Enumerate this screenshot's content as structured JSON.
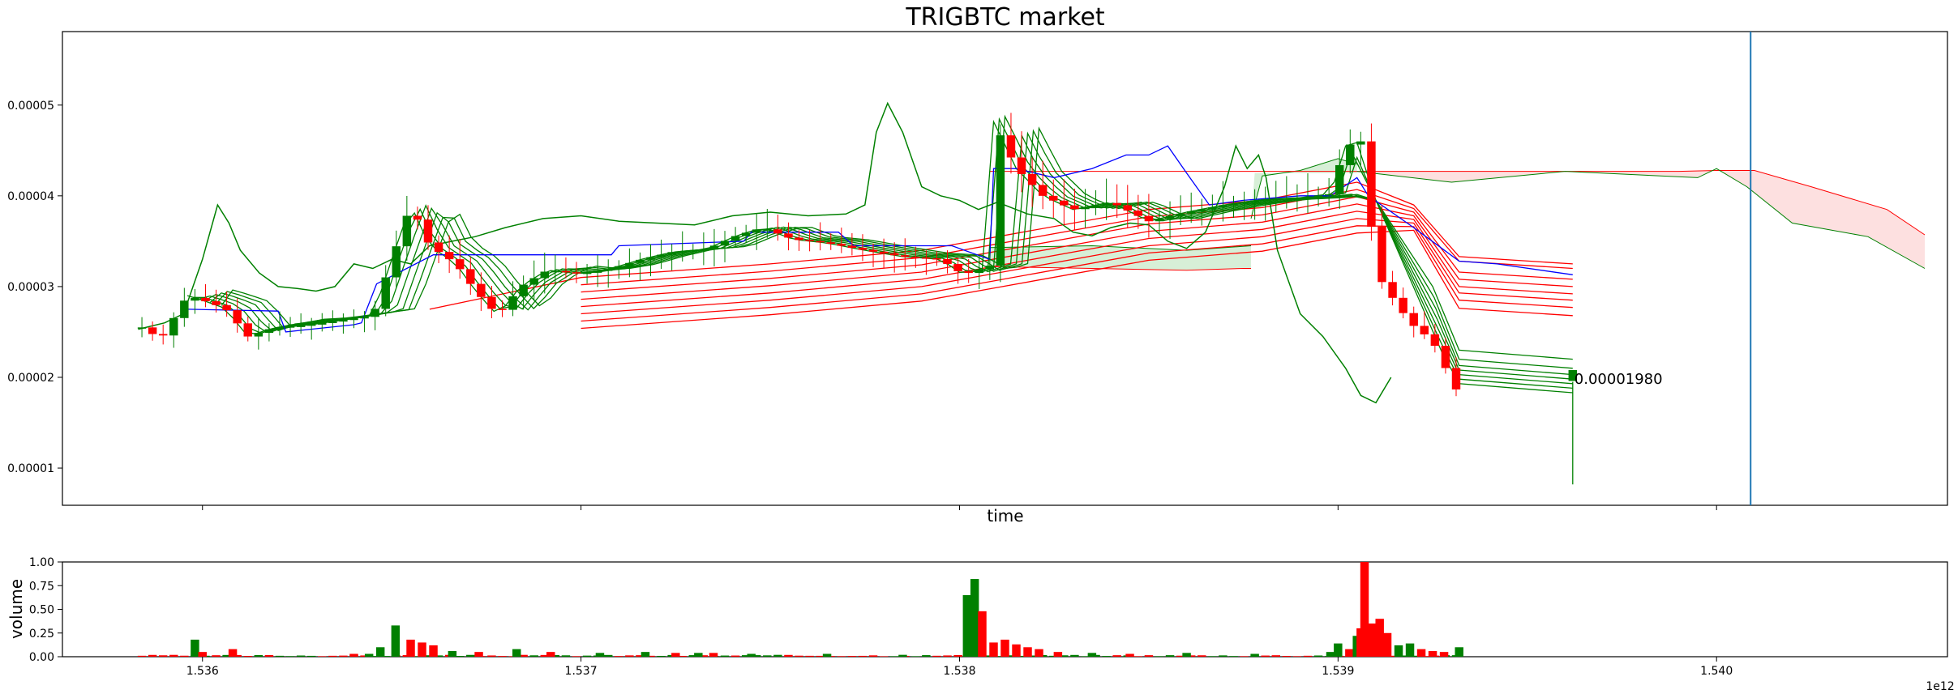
{
  "colors": {
    "up": "#008000",
    "down": "#ff0000",
    "kijun": "#0000ff",
    "cursor_line": "#1f77b4",
    "cloud_bull": "#d7efd7",
    "cloud_bear": "#fde0e0"
  },
  "chart_data": [
    {
      "type": "candlestick",
      "title": "TRIGBTC market",
      "xlabel": "time",
      "ylabel": "",
      "y_tick_labels": [
        "0.00001",
        "0.00002",
        "0.00003",
        "0.00004",
        "0.00005"
      ],
      "y_ticks": [
        1e-05,
        2e-05,
        3e-05,
        4e-05,
        5e-05
      ],
      "ylim": [
        5.9e-06,
        5.81e-05
      ],
      "xlim": [
        1.53563,
        1.54061
      ],
      "grid": false,
      "last_price_label": "0.00001980",
      "last_price": 1.98e-05,
      "close_path": [
        [
          1.53584,
          2.55e-05
        ],
        [
          1.53589,
          2.42e-05
        ],
        [
          1.53596,
          2.9e-05
        ],
        [
          1.536,
          2.85e-05
        ],
        [
          1.53606,
          2.76e-05
        ],
        [
          1.53612,
          2.45e-05
        ],
        [
          1.53619,
          2.55e-05
        ],
        [
          1.53627,
          2.57e-05
        ],
        [
          1.53637,
          2.63e-05
        ],
        [
          1.53645,
          2.68e-05
        ],
        [
          1.5365,
          3.3e-05
        ],
        [
          1.53655,
          3.9e-05
        ],
        [
          1.5366,
          3.45e-05
        ],
        [
          1.53667,
          3.25e-05
        ],
        [
          1.53672,
          2.96e-05
        ],
        [
          1.53678,
          2.68e-05
        ],
        [
          1.53684,
          3e-05
        ],
        [
          1.53691,
          3.18e-05
        ],
        [
          1.537,
          3.14e-05
        ],
        [
          1.53708,
          3.2e-05
        ],
        [
          1.53716,
          3.3e-05
        ],
        [
          1.53724,
          3.38e-05
        ],
        [
          1.53733,
          3.41e-05
        ],
        [
          1.53741,
          3.56e-05
        ],
        [
          1.53748,
          3.65e-05
        ],
        [
          1.53756,
          3.52e-05
        ],
        [
          1.53765,
          3.48e-05
        ],
        [
          1.53775,
          3.4e-05
        ],
        [
          1.53785,
          3.33e-05
        ],
        [
          1.53795,
          3.3e-05
        ],
        [
          1.53801,
          3.13e-05
        ],
        [
          1.53808,
          3.23e-05
        ],
        [
          1.53806,
          3.48e-05
        ],
        [
          1.53808,
          4.9e-05
        ],
        [
          1.53811,
          4.65e-05
        ],
        [
          1.53815,
          4.3e-05
        ],
        [
          1.53822,
          4e-05
        ],
        [
          1.5383,
          3.85e-05
        ],
        [
          1.5384,
          3.93e-05
        ],
        [
          1.5385,
          3.72e-05
        ],
        [
          1.5386,
          3.82e-05
        ],
        [
          1.5387,
          3.9e-05
        ],
        [
          1.5388,
          3.96e-05
        ],
        [
          1.5389,
          3.98e-05
        ],
        [
          1.53898,
          4.02e-05
        ],
        [
          1.53902,
          4.55e-05
        ],
        [
          1.53906,
          4.6e-05
        ],
        [
          1.53908,
          4e-05
        ],
        [
          1.5391,
          3.15e-05
        ],
        [
          1.53914,
          2.9e-05
        ],
        [
          1.53919,
          2.6e-05
        ],
        [
          1.53925,
          2.4e-05
        ],
        [
          1.53929,
          2.05e-05
        ],
        [
          1.53932,
          1.8e-05
        ]
      ],
      "kijun_path": [
        [
          1.53596,
          2.75e-05
        ],
        [
          1.5362,
          2.73e-05
        ],
        [
          1.53622,
          2.5e-05
        ],
        [
          1.5364,
          2.58e-05
        ],
        [
          1.53642,
          2.6e-05
        ],
        [
          1.53646,
          3.03e-05
        ],
        [
          1.53661,
          3.35e-05
        ],
        [
          1.5368,
          3.35e-05
        ],
        [
          1.53708,
          3.35e-05
        ],
        [
          1.5371,
          3.45e-05
        ],
        [
          1.53743,
          3.5e-05
        ],
        [
          1.53745,
          3.6e-05
        ],
        [
          1.53768,
          3.6e-05
        ],
        [
          1.53772,
          3.45e-05
        ],
        [
          1.53798,
          3.45e-05
        ],
        [
          1.53808,
          3.3e-05
        ],
        [
          1.53809,
          4.3e-05
        ],
        [
          1.53815,
          4.3e-05
        ],
        [
          1.53825,
          4.2e-05
        ],
        [
          1.53835,
          4.3e-05
        ],
        [
          1.53844,
          4.45e-05
        ],
        [
          1.5385,
          4.45e-05
        ],
        [
          1.53855,
          4.55e-05
        ],
        [
          1.5386,
          4.25e-05
        ],
        [
          1.53866,
          3.9e-05
        ],
        [
          1.53875,
          3.95e-05
        ],
        [
          1.5389,
          4e-05
        ],
        [
          1.53898,
          4e-05
        ],
        [
          1.53905,
          4.2e-05
        ],
        [
          1.53908,
          4e-05
        ],
        [
          1.5392,
          3.65e-05
        ],
        [
          1.53932,
          3.28e-05
        ],
        [
          1.53942,
          3.25e-05
        ],
        [
          1.53962,
          3.13e-05
        ]
      ],
      "chikou_path": [
        [
          1.53583,
          2.53e-05
        ],
        [
          1.5359,
          2.6e-05
        ],
        [
          1.53595,
          2.7e-05
        ],
        [
          1.536,
          3.3e-05
        ],
        [
          1.53604,
          3.9e-05
        ],
        [
          1.53607,
          3.7e-05
        ],
        [
          1.5361,
          3.4e-05
        ],
        [
          1.53615,
          3.15e-05
        ],
        [
          1.5362,
          3e-05
        ],
        [
          1.53625,
          2.98e-05
        ],
        [
          1.5363,
          2.95e-05
        ],
        [
          1.53635,
          3e-05
        ],
        [
          1.5364,
          3.25e-05
        ],
        [
          1.53645,
          3.2e-05
        ],
        [
          1.5365,
          3.3e-05
        ],
        [
          1.53655,
          3.25e-05
        ],
        [
          1.5366,
          3.45e-05
        ],
        [
          1.53666,
          3.5e-05
        ],
        [
          1.53672,
          3.55e-05
        ],
        [
          1.5368,
          3.65e-05
        ],
        [
          1.5369,
          3.75e-05
        ],
        [
          1.537,
          3.78e-05
        ],
        [
          1.5371,
          3.72e-05
        ],
        [
          1.5372,
          3.7e-05
        ],
        [
          1.5373,
          3.68e-05
        ],
        [
          1.5374,
          3.78e-05
        ],
        [
          1.5375,
          3.82e-05
        ],
        [
          1.5376,
          3.78e-05
        ],
        [
          1.5377,
          3.8e-05
        ],
        [
          1.53775,
          3.9e-05
        ],
        [
          1.53778,
          4.7e-05
        ],
        [
          1.53781,
          5.02e-05
        ],
        [
          1.53785,
          4.7e-05
        ],
        [
          1.5379,
          4.1e-05
        ],
        [
          1.53795,
          4e-05
        ],
        [
          1.538,
          3.95e-05
        ],
        [
          1.53805,
          3.85e-05
        ],
        [
          1.5381,
          3.93e-05
        ],
        [
          1.53818,
          3.8e-05
        ],
        [
          1.53825,
          3.75e-05
        ],
        [
          1.5383,
          3.6e-05
        ],
        [
          1.53835,
          3.56e-05
        ],
        [
          1.5384,
          3.65e-05
        ],
        [
          1.53845,
          3.7e-05
        ],
        [
          1.5385,
          3.68e-05
        ],
        [
          1.53855,
          3.5e-05
        ],
        [
          1.5386,
          3.42e-05
        ],
        [
          1.53865,
          3.6e-05
        ],
        [
          1.5387,
          4.1e-05
        ],
        [
          1.53873,
          4.55e-05
        ],
        [
          1.53876,
          4.3e-05
        ],
        [
          1.53879,
          4.45e-05
        ],
        [
          1.53881,
          4.2e-05
        ],
        [
          1.53884,
          3.4e-05
        ],
        [
          1.5389,
          2.7e-05
        ],
        [
          1.53896,
          2.45e-05
        ],
        [
          1.53902,
          2.1e-05
        ],
        [
          1.53906,
          1.8e-05
        ],
        [
          1.5391,
          1.72e-05
        ],
        [
          1.53914,
          2e-05
        ]
      ],
      "green_ma_ends": [
        2.2e-05,
        2.1e-05,
        2.03e-05,
        1.98e-05,
        1.93e-05,
        1.88e-05,
        1.83e-05
      ],
      "red_ma_ends": [
        3.25e-05,
        3.2e-05,
        3.08e-05,
        3e-05,
        2.92e-05,
        2.85e-05,
        2.77e-05,
        2.68e-05
      ],
      "cursor_x": 1.54009
    },
    {
      "type": "bar",
      "ylabel": "volume",
      "y_tick_labels": [
        "0.00",
        "0.25",
        "0.50",
        "0.75",
        "1.00"
      ],
      "y_ticks": [
        0,
        0.25,
        0.5,
        0.75,
        1.0
      ],
      "ylim": [
        0,
        1.0
      ],
      "x_tick_labels": [
        "1.536",
        "1.537",
        "1.538",
        "1.539",
        "1.540"
      ],
      "x_ticks": [
        1.536,
        1.537,
        1.538,
        1.539,
        1.54
      ],
      "x_offset_label": "1e12",
      "bars": [
        [
          1.53598,
          0.18,
          "up"
        ],
        [
          1.536,
          0.05,
          "down"
        ],
        [
          1.53608,
          0.08,
          "down"
        ],
        [
          1.5364,
          0.03,
          "down"
        ],
        [
          1.53644,
          0.03,
          "up"
        ],
        [
          1.53647,
          0.1,
          "up"
        ],
        [
          1.53651,
          0.33,
          "up"
        ],
        [
          1.53655,
          0.18,
          "down"
        ],
        [
          1.53658,
          0.15,
          "down"
        ],
        [
          1.53661,
          0.12,
          "down"
        ],
        [
          1.53666,
          0.06,
          "up"
        ],
        [
          1.53673,
          0.05,
          "down"
        ],
        [
          1.53683,
          0.08,
          "up"
        ],
        [
          1.53692,
          0.05,
          "down"
        ],
        [
          1.53705,
          0.04,
          "up"
        ],
        [
          1.53717,
          0.05,
          "up"
        ],
        [
          1.53725,
          0.04,
          "down"
        ],
        [
          1.53731,
          0.04,
          "up"
        ],
        [
          1.53735,
          0.04,
          "down"
        ],
        [
          1.53745,
          0.03,
          "up"
        ],
        [
          1.53765,
          0.03,
          "up"
        ],
        [
          1.53785,
          0.02,
          "up"
        ],
        [
          1.53802,
          0.65,
          "up"
        ],
        [
          1.53804,
          0.82,
          "up"
        ],
        [
          1.53806,
          0.48,
          "down"
        ],
        [
          1.53809,
          0.15,
          "down"
        ],
        [
          1.53812,
          0.18,
          "down"
        ],
        [
          1.53815,
          0.13,
          "down"
        ],
        [
          1.53818,
          0.1,
          "down"
        ],
        [
          1.53821,
          0.08,
          "down"
        ],
        [
          1.53826,
          0.05,
          "down"
        ],
        [
          1.53835,
          0.04,
          "up"
        ],
        [
          1.53845,
          0.03,
          "down"
        ],
        [
          1.5386,
          0.04,
          "up"
        ],
        [
          1.53878,
          0.03,
          "up"
        ],
        [
          1.53898,
          0.05,
          "up"
        ],
        [
          1.539,
          0.14,
          "up"
        ],
        [
          1.53903,
          0.08,
          "down"
        ],
        [
          1.53905,
          0.22,
          "up"
        ],
        [
          1.53906,
          0.3,
          "down"
        ],
        [
          1.53907,
          1.0,
          "down"
        ],
        [
          1.53909,
          0.35,
          "down"
        ],
        [
          1.53911,
          0.4,
          "down"
        ],
        [
          1.53913,
          0.25,
          "down"
        ],
        [
          1.53916,
          0.12,
          "up"
        ],
        [
          1.53919,
          0.14,
          "up"
        ],
        [
          1.53922,
          0.08,
          "down"
        ],
        [
          1.53925,
          0.06,
          "down"
        ],
        [
          1.53928,
          0.05,
          "down"
        ],
        [
          1.53932,
          0.1,
          "up"
        ]
      ]
    }
  ]
}
